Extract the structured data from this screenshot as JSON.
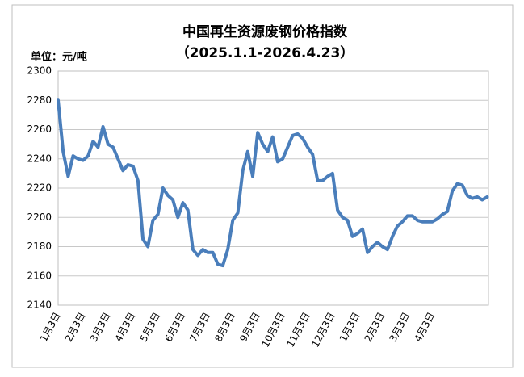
{
  "chart_data": {
    "type": "line",
    "title": "中国再生资源废钢价格指数",
    "subtitle": "（2025.1.1-2026.4.23）",
    "y_axis_label": "单位：元/吨",
    "categories": [
      "1月3日",
      null,
      null,
      null,
      null,
      "2月3日",
      null,
      null,
      null,
      null,
      "3月3日",
      null,
      null,
      null,
      null,
      "4月3日",
      null,
      null,
      null,
      null,
      "5月3日",
      null,
      null,
      null,
      null,
      "6月3日",
      null,
      null,
      null,
      null,
      "7月3日",
      null,
      null,
      null,
      null,
      "8月3日",
      null,
      null,
      null,
      null,
      "9月3日",
      null,
      null,
      null,
      null,
      "10月3日",
      null,
      null,
      null,
      null,
      "11月3日",
      null,
      null,
      null,
      null,
      "12月3日",
      null,
      null,
      null,
      null,
      "1月3日",
      null,
      null,
      null,
      null,
      "2月3日",
      null,
      null,
      null,
      null,
      "3月3日",
      null,
      null,
      null,
      null,
      "4月3日",
      null,
      null,
      null,
      null,
      null,
      null,
      null,
      null,
      null,
      null,
      null
    ],
    "values": [
      2280,
      2245,
      2228,
      2242,
      2240,
      2239,
      2242,
      2252,
      2248,
      2262,
      2250,
      2248,
      2240,
      2232,
      2236,
      2235,
      2225,
      2185,
      2180,
      2198,
      2202,
      2220,
      2215,
      2212,
      2200,
      2210,
      2205,
      2178,
      2174,
      2178,
      2176,
      2176,
      2168,
      2167,
      2178,
      2198,
      2203,
      2232,
      2245,
      2228,
      2258,
      2250,
      2245,
      2255,
      2238,
      2240,
      2248,
      2256,
      2257,
      2254,
      2248,
      2243,
      2225,
      2225,
      2228,
      2230,
      2205,
      2200,
      2198,
      2187,
      2189,
      2192,
      2176,
      2180,
      2183,
      2180,
      2178,
      2187,
      2194,
      2197,
      2201,
      2201,
      2198,
      2197,
      2197,
      2197,
      2199,
      2202,
      2204,
      2218,
      2223,
      2222,
      2215,
      2213,
      2214,
      2212,
      2214
    ],
    "color": "#4a7ebb",
    "ylim": [
      2140,
      2300
    ],
    "yticks": [
      2140,
      2160,
      2180,
      2200,
      2220,
      2240,
      2260,
      2280,
      2300
    ],
    "grid": true
  }
}
